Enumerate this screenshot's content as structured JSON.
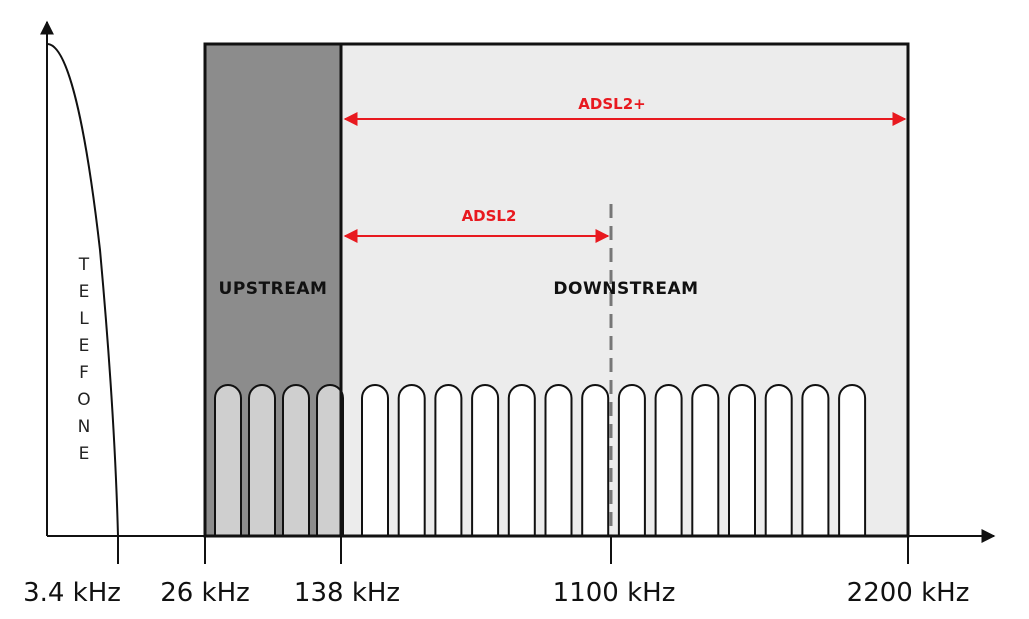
{
  "labels": {
    "telephone": "TELEFONE",
    "upstream": "UPSTREAM",
    "downstream": "DOWNSTREAM"
  },
  "ranges": [
    {
      "name": "ADSL2+",
      "from_khz": 138,
      "to_khz": 2200
    },
    {
      "name": "ADSL2",
      "from_khz": 138,
      "to_khz": 1100
    }
  ],
  "ticks": [
    {
      "label": "3.4 kHz",
      "khz": 3.4
    },
    {
      "label": "26 kHz",
      "khz": 26
    },
    {
      "label": "138 kHz",
      "khz": 138
    },
    {
      "label": "1100 kHz",
      "khz": 1100
    },
    {
      "label": "2200 kHz",
      "khz": 2200
    }
  ],
  "subcarriers": {
    "upstream_count": 4,
    "downstream_count": 14
  },
  "colors": {
    "upstream_fill": "#8c8c8c",
    "downstream_fill": "#ececec",
    "upstream_carrier_fill": "#cfcfcf",
    "downstream_carrier_fill": "#ffffff",
    "range_arrow": "#e8191f",
    "divider_dash": "#777777",
    "line": "#111111"
  }
}
